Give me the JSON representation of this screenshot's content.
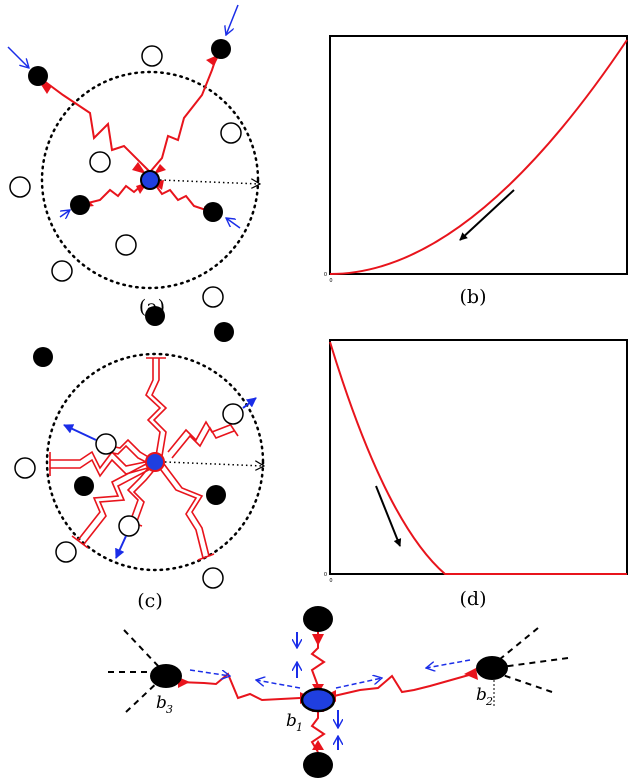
{
  "colors": {
    "spring": "#e8141c",
    "center": "#1f3fe0",
    "arrow_blue": "#1a2de8",
    "black": "#000000"
  },
  "panels": {
    "a": {
      "label": "(a)"
    },
    "b": {
      "label": "(b)",
      "x_origin": "0",
      "y_origin": "0",
      "curve": "convex-increasing"
    },
    "c": {
      "label": "(c)"
    },
    "d": {
      "label": "(d)",
      "x_origin": "0",
      "y_origin": "0",
      "curve": "convex-decreasing"
    },
    "e": {
      "nodes": [
        {
          "letter": "b",
          "sub": "3"
        },
        {
          "letter": "b",
          "sub": "1"
        },
        {
          "letter": "b",
          "sub": "2"
        }
      ]
    }
  }
}
